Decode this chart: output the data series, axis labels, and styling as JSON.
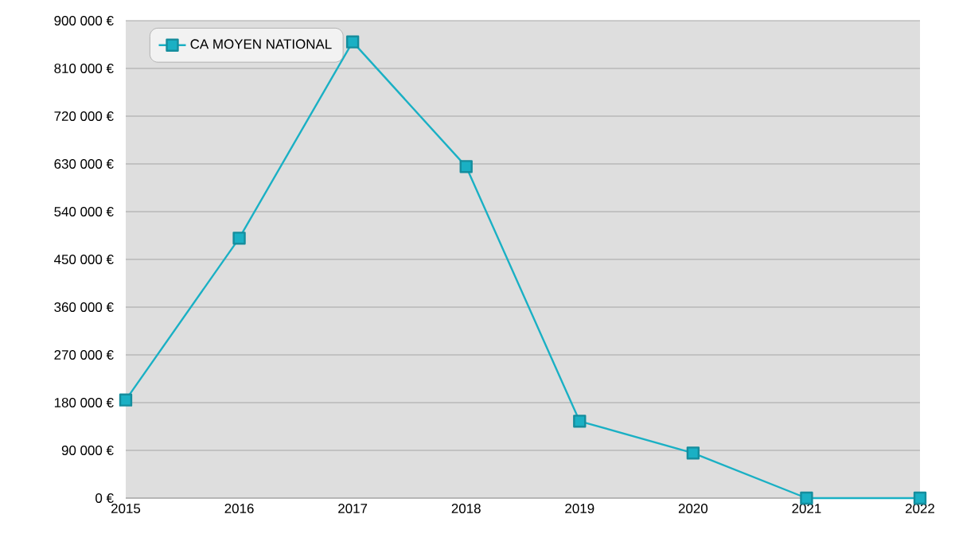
{
  "chart_data": {
    "type": "line",
    "x": [
      2015,
      2016,
      2017,
      2018,
      2019,
      2020,
      2021,
      2022
    ],
    "series": [
      {
        "name": "CA MOYEN NATIONAL",
        "color": "#1ab0c4",
        "values": [
          185000,
          490000,
          860000,
          625000,
          145000,
          85000,
          0,
          0
        ]
      }
    ],
    "xlim": [
      2015,
      2022
    ],
    "xticks": [
      2015,
      2016,
      2017,
      2018,
      2019,
      2020,
      2021,
      2022
    ],
    "ylim": [
      0,
      900000
    ],
    "yticks": [
      {
        "value": 0,
        "label": "0 €"
      },
      {
        "value": 90000,
        "label": "90 000 €"
      },
      {
        "value": 180000,
        "label": "180 000 €"
      },
      {
        "value": 270000,
        "label": "270 000 €"
      },
      {
        "value": 360000,
        "label": "360 000 €"
      },
      {
        "value": 450000,
        "label": "450 000 €"
      },
      {
        "value": 540000,
        "label": "540 000 €"
      },
      {
        "value": 630000,
        "label": "630 000 €"
      },
      {
        "value": 720000,
        "label": "720 000 €"
      },
      {
        "value": 810000,
        "label": "810 000 €"
      },
      {
        "value": 900000,
        "label": "900 000 €"
      }
    ],
    "grid": "y",
    "legend": "top left",
    "marker": "square",
    "line_style": "solid"
  }
}
